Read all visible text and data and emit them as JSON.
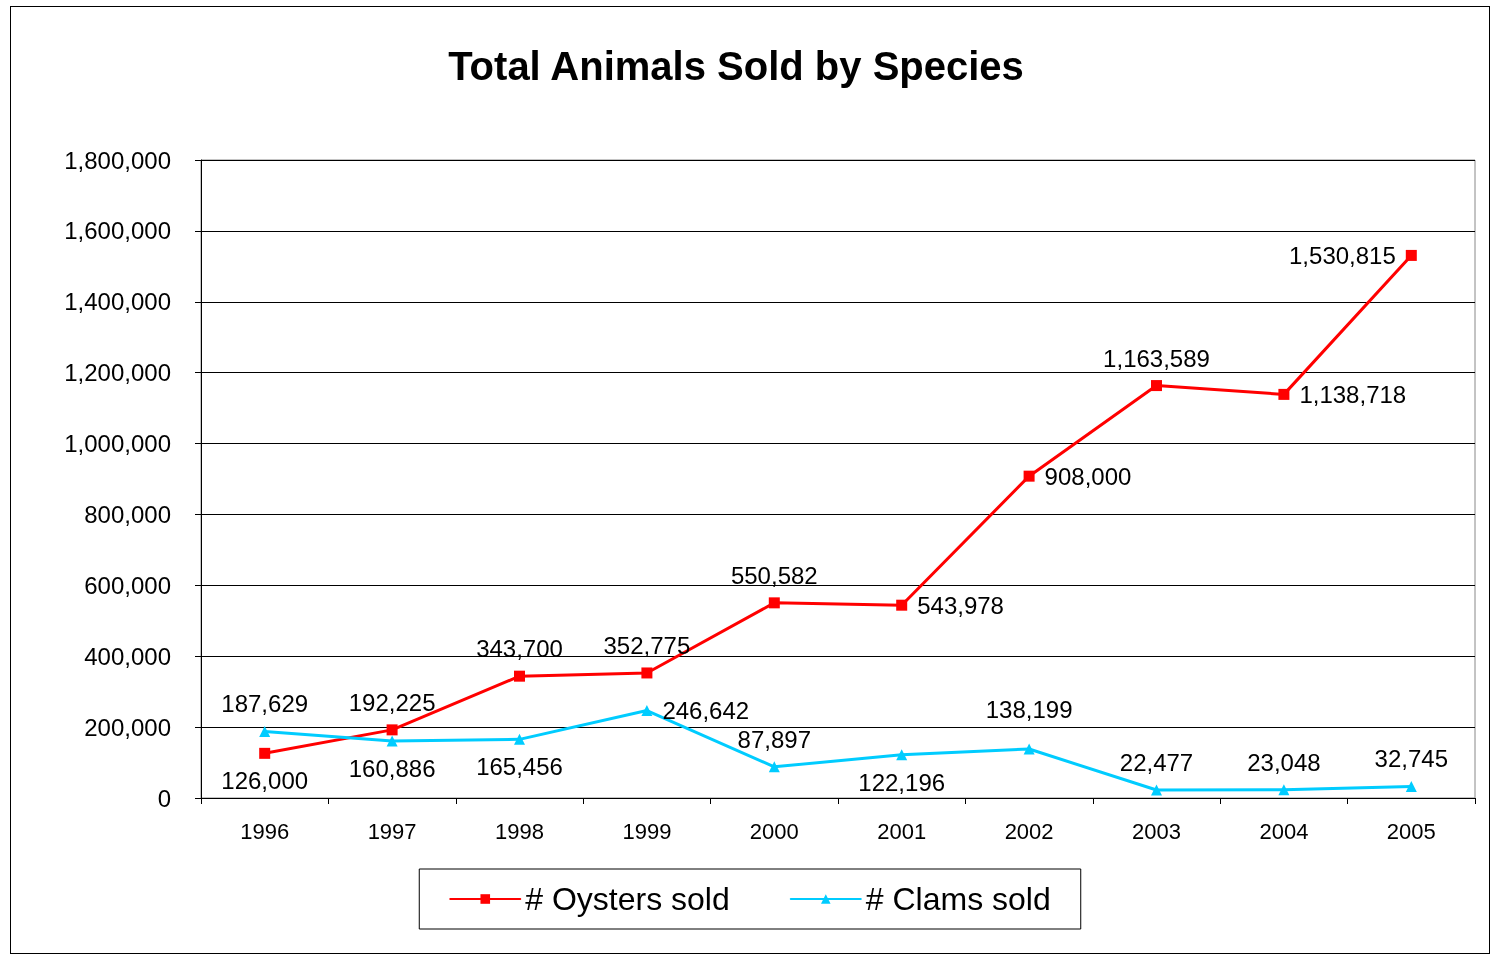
{
  "chart_data": {
    "type": "line",
    "title": "Total Animals Sold by Species",
    "categories": [
      "1996",
      "1997",
      "1998",
      "1999",
      "2000",
      "2001",
      "2002",
      "2003",
      "2004",
      "2005"
    ],
    "series": [
      {
        "name": "# Oysters sold",
        "color": "#ff0000",
        "marker": "square",
        "values": [
          126000,
          192225,
          343700,
          352775,
          550582,
          543978,
          908000,
          1163589,
          1138718,
          1530815
        ],
        "value_labels": [
          "126,000",
          "192,225",
          "343,700",
          "352,775",
          "550,582",
          "543,978",
          "908,000",
          "1,163,589",
          "1,138,718",
          "1,530,815"
        ]
      },
      {
        "name": "# Clams sold",
        "color": "#00ccff",
        "marker": "triangle",
        "values": [
          187629,
          160886,
          165456,
          246642,
          87897,
          122196,
          138199,
          22477,
          23048,
          32745
        ],
        "value_labels": [
          "187,629",
          "160,886",
          "165,456",
          "246,642",
          "87,897",
          "122,196",
          "138,199",
          "22,477",
          "23,048",
          "32,745"
        ]
      }
    ],
    "ylim": [
      0,
      1800000
    ],
    "yticks": [
      {
        "value": 0,
        "label": "0"
      },
      {
        "value": 200000,
        "label": "200,000"
      },
      {
        "value": 400000,
        "label": "400,000"
      },
      {
        "value": 600000,
        "label": "600,000"
      },
      {
        "value": 800000,
        "label": "800,000"
      },
      {
        "value": 1000000,
        "label": "1,000,000"
      },
      {
        "value": 1200000,
        "label": "1,200,000"
      },
      {
        "value": 1400000,
        "label": "1,400,000"
      },
      {
        "value": 1600000,
        "label": "1,600,000"
      },
      {
        "value": 1800000,
        "label": "1,800,000"
      }
    ],
    "grid": "y",
    "legend": "bottom",
    "line_style": "solid"
  }
}
